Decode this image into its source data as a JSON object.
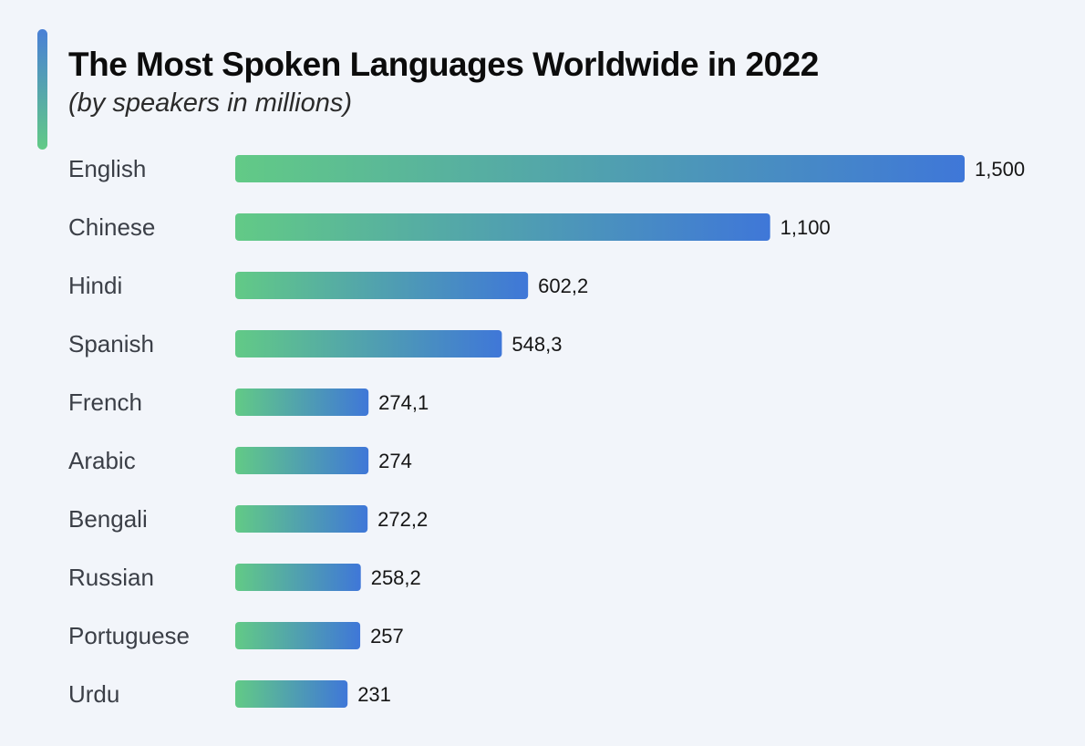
{
  "title": "The Most Spoken Languages Worldwide in 2022",
  "subtitle": "(by speakers in millions)",
  "colors": {
    "background": "#f2f5fa",
    "bar_start": "#62ca86",
    "bar_end": "#3f77d8",
    "accent_top": "#4a80d6",
    "accent_bottom": "#62ca86",
    "text": "#3b3f47",
    "value_text": "#151515"
  },
  "chart_data": {
    "type": "bar",
    "orientation": "horizontal",
    "title": "The Most Spoken Languages Worldwide in 2022",
    "subtitle": "(by speakers in millions)",
    "categories": [
      "English",
      "Chinese",
      "Hindi",
      "Spanish",
      "French",
      "Arabic",
      "Bengali",
      "Russian",
      "Portuguese",
      "Urdu"
    ],
    "values": [
      1500,
      1100,
      602.2,
      548.3,
      274.1,
      274,
      272.2,
      258.2,
      257,
      231
    ],
    "value_labels": [
      "1,500",
      "1,100",
      "602,2",
      "548,3",
      "274,1",
      "274",
      "272,2",
      "258,2",
      "257",
      "231"
    ],
    "xlim": [
      0,
      1500
    ],
    "grid": false,
    "legend": "none",
    "xlabel": "",
    "ylabel": ""
  }
}
